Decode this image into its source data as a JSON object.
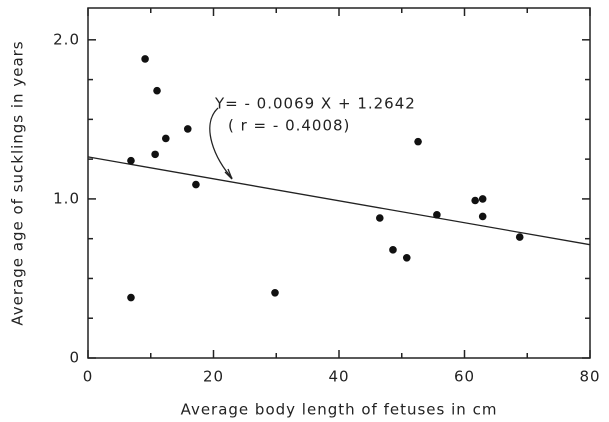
{
  "chart_data": {
    "type": "scatter",
    "xlabel": "Average body length of  fetuses  in cm",
    "ylabel": "Average age of sucklings in years",
    "x": [
      6.85,
      6.85,
      9.1,
      11.0,
      10.7,
      12.4,
      15.9,
      17.2,
      29.8,
      46.5,
      48.6,
      50.8,
      52.6,
      55.6,
      61.7,
      62.9,
      62.9,
      68.8
    ],
    "values": [
      1.24,
      0.38,
      1.88,
      1.68,
      1.28,
      1.38,
      1.44,
      1.09,
      0.41,
      0.88,
      0.68,
      0.63,
      1.36,
      0.9,
      0.99,
      1.0,
      0.89,
      0.76
    ],
    "color": "#111111",
    "fit": {
      "slope": -0.0069,
      "intercept": 1.2642
    },
    "annotation": [
      "Y= - 0.0069 X + 1.2642",
      "( r = - 0.4008)"
    ],
    "xlim": [
      0,
      80
    ],
    "xticks": [
      0,
      20,
      40,
      60,
      80
    ],
    "xminor": [
      10,
      30,
      50,
      70
    ],
    "ylim": [
      0,
      2.2
    ],
    "yticks": [
      0,
      {
        "value": 1,
        "label": "1.0"
      },
      {
        "value": 2,
        "label": "2.0"
      }
    ],
    "yminor": [
      0.25,
      0.5,
      0.75,
      1.25,
      1.5,
      1.75
    ]
  }
}
